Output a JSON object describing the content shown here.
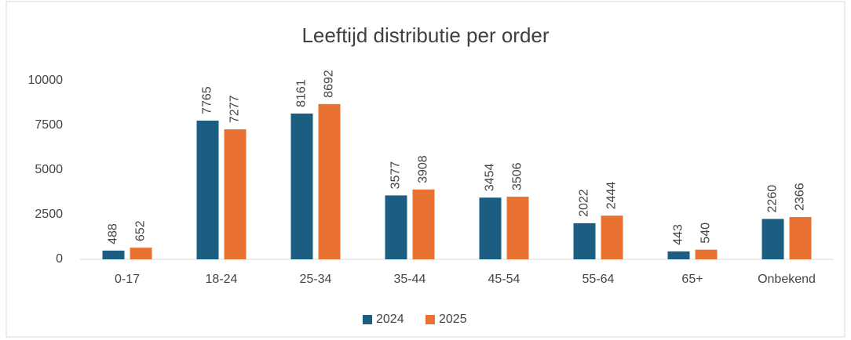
{
  "chart_data": {
    "type": "bar",
    "title": "Leeftijd distributie per order",
    "categories": [
      "0-17",
      "18-24",
      "25-34",
      "35-44",
      "45-54",
      "55-64",
      "65+",
      "Onbekend"
    ],
    "series": [
      {
        "name": "2024",
        "color": "#1b5e82",
        "values": [
          488,
          7765,
          8161,
          3577,
          3454,
          2022,
          443,
          2260
        ]
      },
      {
        "name": "2025",
        "color": "#e97132",
        "values": [
          652,
          7277,
          8692,
          3908,
          3506,
          2444,
          540,
          2366
        ]
      }
    ],
    "ylim": [
      0,
      10000
    ],
    "yticks": [
      0,
      2500,
      5000,
      7500,
      10000
    ],
    "grid": false,
    "legend": "bottom"
  }
}
